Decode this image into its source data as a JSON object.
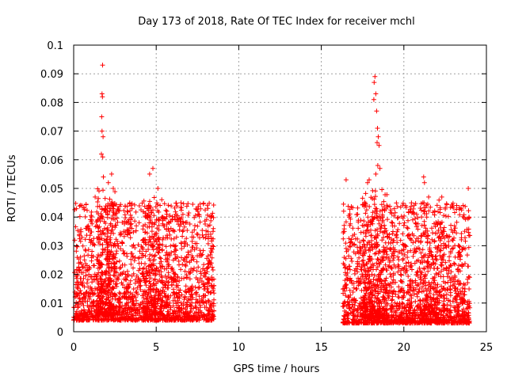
{
  "chart_data": {
    "type": "scatter",
    "title": "Day 173 of 2018, Rate Of TEC Index for receiver mchl",
    "xlabel": "GPS time / hours",
    "ylabel": "ROTI / TECUs",
    "xlim": [
      0,
      25
    ],
    "ylim": [
      0,
      0.1
    ],
    "xticks": [
      0,
      5,
      10,
      15,
      20,
      25
    ],
    "xtick_labels": [
      "0",
      "5",
      "10",
      "15",
      "20",
      "25"
    ],
    "yticks": [
      0,
      0.01,
      0.02,
      0.03,
      0.04,
      0.05,
      0.06,
      0.07,
      0.08,
      0.09,
      0.1
    ],
    "ytick_labels": [
      "0",
      "0.01",
      "0.02",
      "0.03",
      "0.04",
      "0.05",
      "0.06",
      "0.07",
      "0.08",
      "0.09",
      "0.1"
    ],
    "grid": true,
    "marker": "+",
    "color": "#ff0000",
    "series": [
      {
        "name": "ROTI",
        "points": [
          [
            1.75,
            0.093
          ],
          [
            1.72,
            0.083
          ],
          [
            1.74,
            0.082
          ],
          [
            1.7,
            0.075
          ],
          [
            1.72,
            0.07
          ],
          [
            1.78,
            0.068
          ],
          [
            1.68,
            0.062
          ],
          [
            1.76,
            0.061
          ],
          [
            1.8,
            0.054
          ],
          [
            2.3,
            0.055
          ],
          [
            2.1,
            0.052
          ],
          [
            2.4,
            0.05
          ],
          [
            4.8,
            0.057
          ],
          [
            4.6,
            0.055
          ],
          [
            5.1,
            0.05
          ],
          [
            0.5,
            0.044
          ],
          [
            1.3,
            0.047
          ],
          [
            18.25,
            0.089
          ],
          [
            18.2,
            0.087
          ],
          [
            18.3,
            0.083
          ],
          [
            18.18,
            0.081
          ],
          [
            18.35,
            0.077
          ],
          [
            18.4,
            0.071
          ],
          [
            18.45,
            0.068
          ],
          [
            18.38,
            0.066
          ],
          [
            18.5,
            0.065
          ],
          [
            18.42,
            0.058
          ],
          [
            18.55,
            0.057
          ],
          [
            18.3,
            0.055
          ],
          [
            17.8,
            0.052
          ],
          [
            17.9,
            0.053
          ],
          [
            16.5,
            0.053
          ],
          [
            21.2,
            0.054
          ],
          [
            21.25,
            0.052
          ],
          [
            21.5,
            0.047
          ],
          [
            23.9,
            0.05
          ],
          [
            22.3,
            0.047
          ],
          [
            8.3,
            0.034
          ],
          [
            8.4,
            0.03
          ],
          [
            6.5,
            0.045
          ],
          [
            6.2,
            0.041
          ]
        ],
        "clusters": [
          {
            "x_range": [
              0.0,
              8.5
            ],
            "y_range": [
              0.004,
              0.045
            ],
            "count": 1900,
            "seed": 11
          },
          {
            "x_range": [
              1.4,
              2.6
            ],
            "y_range": [
              0.006,
              0.05
            ],
            "count": 260,
            "seed": 23
          },
          {
            "x_range": [
              4.2,
              5.4
            ],
            "y_range": [
              0.006,
              0.047
            ],
            "count": 160,
            "seed": 31
          },
          {
            "x_range": [
              16.3,
              24.0
            ],
            "y_range": [
              0.003,
              0.045
            ],
            "count": 1800,
            "seed": 47
          },
          {
            "x_range": [
              17.5,
              19.0
            ],
            "y_range": [
              0.005,
              0.05
            ],
            "count": 260,
            "seed": 59
          },
          {
            "x_range": [
              21.0,
              22.5
            ],
            "y_range": [
              0.004,
              0.046
            ],
            "count": 140,
            "seed": 67
          }
        ]
      }
    ]
  }
}
